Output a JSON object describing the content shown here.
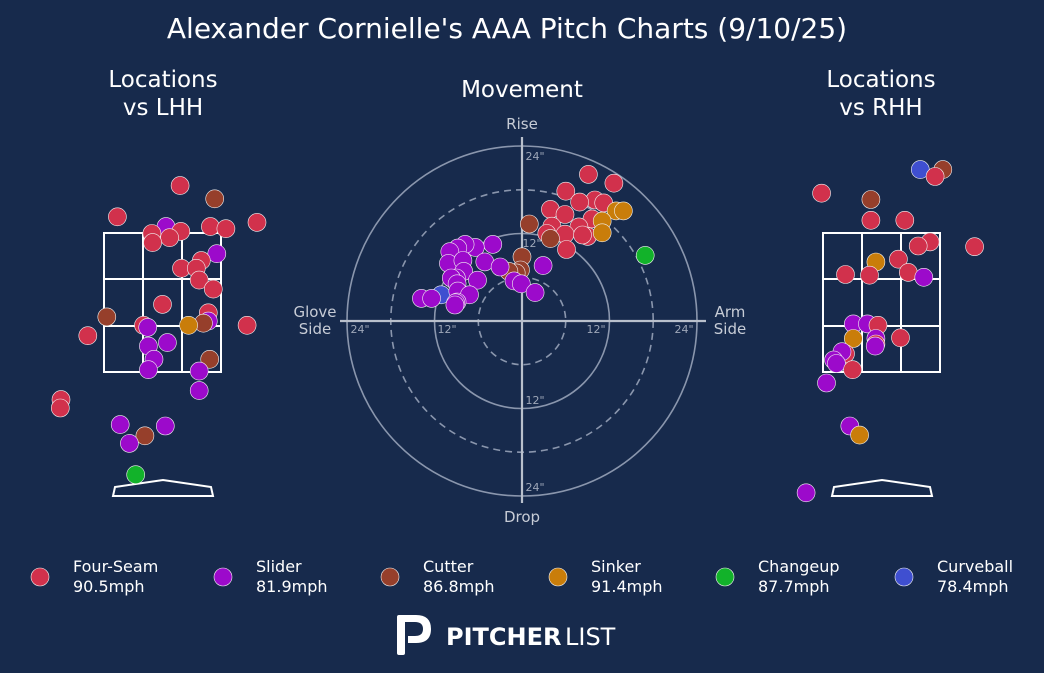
{
  "header": {
    "title": "Alexander Cornielle's AAA Pitch Charts (9/10/25)"
  },
  "panels": {
    "lhh_title": [
      "Locations",
      "vs LHH"
    ],
    "movement_title": "Movement",
    "rhh_title": [
      "Locations",
      "vs RHH"
    ]
  },
  "movement_axes": {
    "top": "Rise",
    "bottom": "Drop",
    "left": [
      "Glove",
      "Side"
    ],
    "right": [
      "Arm",
      "Side"
    ],
    "ring_labels": {
      "inner_h": "12\"",
      "outer_h": "24\"",
      "inner_v": "12\"",
      "outer_v": "24\""
    }
  },
  "colors": {
    "background": "#172a4c",
    "Four-Seam": "#d1314c",
    "Slider": "#9c0acb",
    "Cutter": "#963f2b",
    "Sinker": "#c97d0a",
    "Changeup": "#12b22a",
    "Curveball": "#3f4fd0"
  },
  "legend": [
    {
      "pitch": "Four-Seam",
      "speed": "90.5mph"
    },
    {
      "pitch": "Slider",
      "speed": "81.9mph"
    },
    {
      "pitch": "Cutter",
      "speed": "86.8mph"
    },
    {
      "pitch": "Sinker",
      "speed": "91.4mph"
    },
    {
      "pitch": "Changeup",
      "speed": "87.7mph"
    },
    {
      "pitch": "Curveball",
      "speed": "78.4mph"
    }
  ],
  "footer": {
    "logo_bold": "PITCHER",
    "logo_light": "LIST",
    "logo_icon": "pitcherlist-p-icon"
  },
  "chart_data": [
    {
      "type": "scatter",
      "title": "Locations vs LHH",
      "xlim": [
        -2.5,
        2.5
      ],
      "ylim": [
        0,
        5.2
      ],
      "x_unit": "ft from plate center (catcher view)",
      "y_unit": "ft above ground",
      "strike_zone": {
        "x": [
          -0.83,
          0.83
        ],
        "y": [
          1.5,
          3.5
        ]
      },
      "points": [
        {
          "pitch": "Four-Seam",
          "x": 0.25,
          "y": 4.74
        },
        {
          "pitch": "Cutter",
          "x": 0.74,
          "y": 4.55
        },
        {
          "pitch": "Four-Seam",
          "x": -0.64,
          "y": 4.29
        },
        {
          "pitch": "Four-Seam",
          "x": 1.34,
          "y": 4.21
        },
        {
          "pitch": "Slider",
          "x": 0.05,
          "y": 4.15
        },
        {
          "pitch": "Four-Seam",
          "x": 0.68,
          "y": 4.15
        },
        {
          "pitch": "Four-Seam",
          "x": 0.9,
          "y": 4.12
        },
        {
          "pitch": "Four-Seam",
          "x": -0.15,
          "y": 4.05
        },
        {
          "pitch": "Four-Seam",
          "x": 0.26,
          "y": 4.08
        },
        {
          "pitch": "Four-Seam",
          "x": 0.1,
          "y": 3.99
        },
        {
          "pitch": "Four-Seam",
          "x": -0.14,
          "y": 3.92
        },
        {
          "pitch": "Slider",
          "x": 0.77,
          "y": 3.76
        },
        {
          "pitch": "Four-Seam",
          "x": 0.55,
          "y": 3.66
        },
        {
          "pitch": "Four-Seam",
          "x": 0.27,
          "y": 3.55
        },
        {
          "pitch": "Four-Seam",
          "x": 0.48,
          "y": 3.55
        },
        {
          "pitch": "Four-Seam",
          "x": 0.52,
          "y": 3.38
        },
        {
          "pitch": "Four-Seam",
          "x": 0.72,
          "y": 3.25
        },
        {
          "pitch": "Four-Seam",
          "x": 0.0,
          "y": 3.03
        },
        {
          "pitch": "Four-Seam",
          "x": 0.65,
          "y": 2.91
        },
        {
          "pitch": "Cutter",
          "x": -0.79,
          "y": 2.85
        },
        {
          "pitch": "Four-Seam",
          "x": -0.27,
          "y": 2.73
        },
        {
          "pitch": "Slider",
          "x": -0.21,
          "y": 2.7
        },
        {
          "pitch": "Slider",
          "x": 0.65,
          "y": 2.79
        },
        {
          "pitch": "Cutter",
          "x": 0.58,
          "y": 2.76
        },
        {
          "pitch": "Sinker",
          "x": 0.37,
          "y": 2.73
        },
        {
          "pitch": "Four-Seam",
          "x": 1.2,
          "y": 2.73
        },
        {
          "pitch": "Four-Seam",
          "x": -1.06,
          "y": 2.58
        },
        {
          "pitch": "Slider",
          "x": 0.07,
          "y": 2.48
        },
        {
          "pitch": "Slider",
          "x": -0.2,
          "y": 2.43
        },
        {
          "pitch": "Slider",
          "x": -0.12,
          "y": 2.24
        },
        {
          "pitch": "Cutter",
          "x": 0.67,
          "y": 2.24
        },
        {
          "pitch": "Slider",
          "x": -0.2,
          "y": 2.09
        },
        {
          "pitch": "Slider",
          "x": 0.52,
          "y": 2.07
        },
        {
          "pitch": "Slider",
          "x": 0.52,
          "y": 1.79
        },
        {
          "pitch": "Four-Seam",
          "x": -1.44,
          "y": 1.66
        },
        {
          "pitch": "Four-Seam",
          "x": -1.45,
          "y": 1.54
        },
        {
          "pitch": "Slider",
          "x": -0.6,
          "y": 1.3
        },
        {
          "pitch": "Slider",
          "x": 0.04,
          "y": 1.28
        },
        {
          "pitch": "Cutter",
          "x": -0.25,
          "y": 1.14
        },
        {
          "pitch": "Slider",
          "x": -0.47,
          "y": 1.03
        },
        {
          "pitch": "Changeup",
          "x": -0.38,
          "y": 0.58
        }
      ]
    },
    {
      "type": "scatter",
      "title": "Movement",
      "xlim": [
        -26,
        26
      ],
      "ylim": [
        -26,
        26
      ],
      "x_unit": "inches (glove side negative, arm side positive)",
      "y_unit": "inches (rise positive, drop negative)",
      "rings": [
        6,
        12,
        18,
        24
      ],
      "points": [
        {
          "pitch": "Four-Seam",
          "x": 9.1,
          "y": 20.1
        },
        {
          "pitch": "Four-Seam",
          "x": 12.6,
          "y": 18.9
        },
        {
          "pitch": "Four-Seam",
          "x": 6.0,
          "y": 17.8
        },
        {
          "pitch": "Four-Seam",
          "x": 10.0,
          "y": 16.6
        },
        {
          "pitch": "Four-Seam",
          "x": 7.9,
          "y": 16.3
        },
        {
          "pitch": "Four-Seam",
          "x": 3.9,
          "y": 15.3
        },
        {
          "pitch": "Four-Seam",
          "x": 11.2,
          "y": 16.2
        },
        {
          "pitch": "Four-Seam",
          "x": 5.9,
          "y": 14.6
        },
        {
          "pitch": "Four-Seam",
          "x": 9.6,
          "y": 14.0
        },
        {
          "pitch": "Four-Seam",
          "x": 4.1,
          "y": 13.0
        },
        {
          "pitch": "Four-Seam",
          "x": 7.8,
          "y": 12.9
        },
        {
          "pitch": "Four-Seam",
          "x": 5.9,
          "y": 11.9
        },
        {
          "pitch": "Four-Seam",
          "x": 9.0,
          "y": 11.6
        },
        {
          "pitch": "Four-Seam",
          "x": 6.1,
          "y": 9.8
        },
        {
          "pitch": "Four-Seam",
          "x": 3.4,
          "y": 12.0
        },
        {
          "pitch": "Four-Seam",
          "x": 8.3,
          "y": 11.8
        },
        {
          "pitch": "Sinker",
          "x": 12.9,
          "y": 15.1
        },
        {
          "pitch": "Sinker",
          "x": 13.9,
          "y": 15.1
        },
        {
          "pitch": "Sinker",
          "x": 11.0,
          "y": 13.7
        },
        {
          "pitch": "Sinker",
          "x": 11.0,
          "y": 12.1
        },
        {
          "pitch": "Cutter",
          "x": 1.0,
          "y": 13.3
        },
        {
          "pitch": "Cutter",
          "x": 3.9,
          "y": 11.3
        },
        {
          "pitch": "Cutter",
          "x": 0.0,
          "y": 8.8
        },
        {
          "pitch": "Cutter",
          "x": -0.2,
          "y": 7.0
        },
        {
          "pitch": "Cutter",
          "x": -0.8,
          "y": 6.6
        },
        {
          "pitch": "Cutter",
          "x": -1.8,
          "y": 6.8
        },
        {
          "pitch": "Changeup",
          "x": 16.9,
          "y": 9.0
        },
        {
          "pitch": "Curveball",
          "x": -11.1,
          "y": 3.6
        },
        {
          "pitch": "Slider",
          "x": -4.0,
          "y": 10.5
        },
        {
          "pitch": "Slider",
          "x": -6.4,
          "y": 10.1
        },
        {
          "pitch": "Slider",
          "x": -7.8,
          "y": 10.5
        },
        {
          "pitch": "Slider",
          "x": -8.8,
          "y": 10.0
        },
        {
          "pitch": "Slider",
          "x": -9.9,
          "y": 9.5
        },
        {
          "pitch": "Slider",
          "x": -10.1,
          "y": 7.9
        },
        {
          "pitch": "Slider",
          "x": -8.1,
          "y": 8.3
        },
        {
          "pitch": "Slider",
          "x": -5.1,
          "y": 8.1
        },
        {
          "pitch": "Slider",
          "x": -3.0,
          "y": 7.4
        },
        {
          "pitch": "Slider",
          "x": -8.0,
          "y": 6.8
        },
        {
          "pitch": "Slider",
          "x": -9.0,
          "y": 5.9
        },
        {
          "pitch": "Slider",
          "x": -9.7,
          "y": 5.9
        },
        {
          "pitch": "Slider",
          "x": -6.1,
          "y": 5.6
        },
        {
          "pitch": "Slider",
          "x": -8.9,
          "y": 5.1
        },
        {
          "pitch": "Slider",
          "x": -1.1,
          "y": 5.5
        },
        {
          "pitch": "Slider",
          "x": -0.1,
          "y": 5.1
        },
        {
          "pitch": "Slider",
          "x": -8.8,
          "y": 4.1
        },
        {
          "pitch": "Slider",
          "x": -7.2,
          "y": 3.6
        },
        {
          "pitch": "Slider",
          "x": -13.8,
          "y": 3.1
        },
        {
          "pitch": "Slider",
          "x": -12.4,
          "y": 3.1
        },
        {
          "pitch": "Slider",
          "x": -8.9,
          "y": 2.6
        },
        {
          "pitch": "Slider",
          "x": 1.8,
          "y": 3.9
        },
        {
          "pitch": "Slider",
          "x": 2.9,
          "y": 7.6
        },
        {
          "pitch": "Slider",
          "x": -9.1,
          "y": 2.5
        },
        {
          "pitch": "Slider",
          "x": -9.2,
          "y": 2.2
        }
      ]
    },
    {
      "type": "scatter",
      "title": "Locations vs RHH",
      "xlim": [
        -2.5,
        2.5
      ],
      "ylim": [
        0,
        5.2
      ],
      "x_unit": "ft from plate center (catcher view)",
      "y_unit": "ft above ground",
      "strike_zone": {
        "x": [
          -0.83,
          0.83
        ],
        "y": [
          1.5,
          3.5
        ]
      },
      "points": [
        {
          "pitch": "Curveball",
          "x": 0.55,
          "y": 4.97
        },
        {
          "pitch": "Cutter",
          "x": 0.87,
          "y": 4.97
        },
        {
          "pitch": "Four-Seam",
          "x": 0.76,
          "y": 4.87
        },
        {
          "pitch": "Four-Seam",
          "x": -0.85,
          "y": 4.63
        },
        {
          "pitch": "Cutter",
          "x": -0.15,
          "y": 4.54
        },
        {
          "pitch": "Four-Seam",
          "x": -0.15,
          "y": 4.24
        },
        {
          "pitch": "Four-Seam",
          "x": 0.33,
          "y": 4.24
        },
        {
          "pitch": "Four-Seam",
          "x": 0.69,
          "y": 3.93
        },
        {
          "pitch": "Four-Seam",
          "x": 1.32,
          "y": 3.86
        },
        {
          "pitch": "Four-Seam",
          "x": 0.52,
          "y": 3.87
        },
        {
          "pitch": "Four-Seam",
          "x": 0.24,
          "y": 3.68
        },
        {
          "pitch": "Sinker",
          "x": -0.08,
          "y": 3.64
        },
        {
          "pitch": "Four-Seam",
          "x": -0.51,
          "y": 3.46
        },
        {
          "pitch": "Four-Seam",
          "x": -0.17,
          "y": 3.45
        },
        {
          "pitch": "Four-Seam",
          "x": 0.38,
          "y": 3.49
        },
        {
          "pitch": "Slider",
          "x": 0.6,
          "y": 3.42
        },
        {
          "pitch": "Slider",
          "x": -0.4,
          "y": 2.75
        },
        {
          "pitch": "Slider",
          "x": -0.2,
          "y": 2.75
        },
        {
          "pitch": "Four-Seam",
          "x": -0.05,
          "y": 2.73
        },
        {
          "pitch": "Sinker",
          "x": -0.4,
          "y": 2.54
        },
        {
          "pitch": "Slider",
          "x": -0.08,
          "y": 2.54
        },
        {
          "pitch": "Four-Seam",
          "x": 0.27,
          "y": 2.55
        },
        {
          "pitch": "Four-Seam",
          "x": -0.08,
          "y": 2.46
        },
        {
          "pitch": "Slider",
          "x": -0.09,
          "y": 2.43
        },
        {
          "pitch": "Four-Seam",
          "x": -0.51,
          "y": 2.32
        },
        {
          "pitch": "Slider",
          "x": -0.56,
          "y": 2.35
        },
        {
          "pitch": "Slider",
          "x": -0.68,
          "y": 2.23
        },
        {
          "pitch": "Slider",
          "x": -0.64,
          "y": 2.18
        },
        {
          "pitch": "Slider",
          "x": -0.78,
          "y": 1.9
        },
        {
          "pitch": "Four-Seam",
          "x": -0.41,
          "y": 2.09
        },
        {
          "pitch": "Slider",
          "x": -0.45,
          "y": 1.28
        },
        {
          "pitch": "Sinker",
          "x": -0.31,
          "y": 1.15
        },
        {
          "pitch": "Slider",
          "x": -1.07,
          "y": 0.32
        }
      ]
    }
  ]
}
